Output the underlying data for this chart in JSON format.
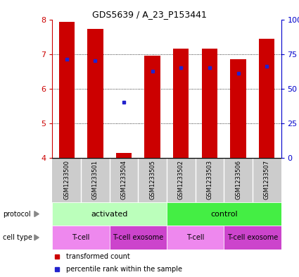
{
  "title": "GDS5639 / A_23_P153441",
  "samples": [
    "GSM1233500",
    "GSM1233501",
    "GSM1233504",
    "GSM1233505",
    "GSM1233502",
    "GSM1233503",
    "GSM1233506",
    "GSM1233507"
  ],
  "red_bar_tops": [
    7.92,
    7.72,
    4.15,
    6.95,
    7.15,
    7.15,
    6.85,
    7.45
  ],
  "blue_dot_y": [
    6.85,
    6.8,
    5.6,
    6.5,
    6.6,
    6.6,
    6.45,
    6.65
  ],
  "y_min": 4,
  "y_max": 8,
  "y_ticks": [
    4,
    5,
    6,
    7,
    8
  ],
  "y2_ticks": [
    0,
    25,
    50,
    75,
    100
  ],
  "bar_color": "#cc0000",
  "dot_color": "#2222cc",
  "bar_width": 0.55,
  "protocol_color_activated": "#bbffbb",
  "protocol_color_control": "#44ee44",
  "cell_color_tcell": "#ee88ee",
  "cell_color_exosome": "#cc44cc",
  "sample_bg_color": "#cccccc",
  "legend_red_label": "transformed count",
  "legend_blue_label": "percentile rank within the sample",
  "tick_color_left": "#cc0000",
  "tick_color_right": "#0000cc",
  "bg_color": "#ffffff",
  "title_fontsize": 9,
  "tick_fontsize": 8,
  "label_fontsize": 7,
  "sample_fontsize": 6
}
